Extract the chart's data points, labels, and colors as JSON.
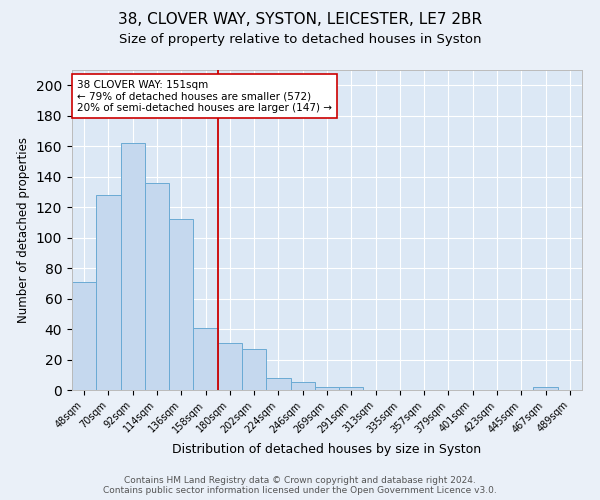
{
  "title1": "38, CLOVER WAY, SYSTON, LEICESTER, LE7 2BR",
  "title2": "Size of property relative to detached houses in Syston",
  "xlabel": "Distribution of detached houses by size in Syston",
  "ylabel": "Number of detached properties",
  "categories": [
    "48sqm",
    "70sqm",
    "92sqm",
    "114sqm",
    "136sqm",
    "158sqm",
    "180sqm",
    "202sqm",
    "224sqm",
    "246sqm",
    "269sqm",
    "291sqm",
    "313sqm",
    "335sqm",
    "357sqm",
    "379sqm",
    "401sqm",
    "423sqm",
    "445sqm",
    "467sqm",
    "489sqm"
  ],
  "values": [
    71,
    128,
    162,
    136,
    112,
    41,
    31,
    27,
    8,
    5,
    2,
    2,
    0,
    0,
    0,
    0,
    0,
    0,
    0,
    2,
    0
  ],
  "bar_color": "#c5d8ee",
  "bar_edge_color": "#6aaad4",
  "vline_x": 5.5,
  "vline_color": "#cc0000",
  "annotation_text": "38 CLOVER WAY: 151sqm\n← 79% of detached houses are smaller (572)\n20% of semi-detached houses are larger (147) →",
  "annotation_box_color": "#ffffff",
  "annotation_box_edge": "#cc0000",
  "ylim": [
    0,
    210
  ],
  "yticks": [
    0,
    20,
    40,
    60,
    80,
    100,
    120,
    140,
    160,
    180,
    200
  ],
  "footer1": "Contains HM Land Registry data © Crown copyright and database right 2024.",
  "footer2": "Contains public sector information licensed under the Open Government Licence v3.0.",
  "plot_bg_color": "#dce8f5",
  "fig_bg_color": "#eaf0f8",
  "title1_fontsize": 11,
  "title2_fontsize": 9.5,
  "annot_fontsize": 7.5,
  "ylabel_fontsize": 8.5,
  "xlabel_fontsize": 9,
  "tick_fontsize": 7,
  "footer_fontsize": 6.5
}
